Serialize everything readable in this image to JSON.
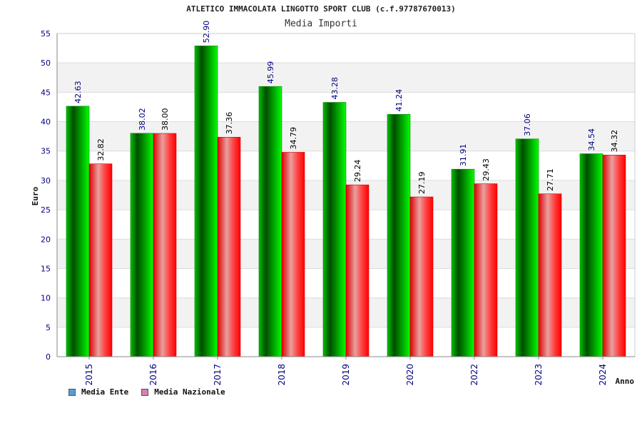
{
  "title": "ATLETICO IMMACOLATA LINGOTTO SPORT CLUB (c.f.97787670013)",
  "subtitle": "Media Importi",
  "legend": [
    {
      "label": "Media Ente",
      "color": "#5b9bd5"
    },
    {
      "label": "Media Nazionale",
      "color": "#d77fb3"
    }
  ],
  "chart_data": {
    "type": "bar",
    "title": "ATLETICO IMMACOLATA LINGOTTO SPORT CLUB (c.f.97787670013)",
    "subtitle": "Media Importi",
    "xlabel": "Anno",
    "ylabel": "Euro",
    "ylim": [
      0,
      55
    ],
    "yticks": [
      0,
      5,
      10,
      15,
      20,
      25,
      30,
      35,
      40,
      45,
      50,
      55
    ],
    "categories": [
      "2015",
      "2016",
      "2017",
      "2018",
      "2019",
      "2020",
      "2022",
      "2023",
      "2024"
    ],
    "series": [
      {
        "name": "Media Ente",
        "values": [
          42.63,
          38.02,
          52.9,
          45.99,
          43.28,
          41.24,
          31.91,
          37.06,
          34.54
        ],
        "labels": [
          "42.63",
          "38.02",
          "52.90",
          "45.99",
          "43.28",
          "41.24",
          "31.91",
          "37.06",
          "34.54"
        ],
        "color": "#00a000"
      },
      {
        "name": "Media Nazionale",
        "values": [
          32.82,
          38.0,
          37.36,
          34.79,
          29.24,
          27.19,
          29.43,
          27.71,
          34.32
        ],
        "labels": [
          "32.82",
          "38.00",
          "37.36",
          "34.79",
          "29.24",
          "27.19",
          "29.43",
          "27.71",
          "34.32"
        ],
        "color": "#ff0000"
      }
    ],
    "grid": true,
    "legend_position": "bottom-left"
  }
}
